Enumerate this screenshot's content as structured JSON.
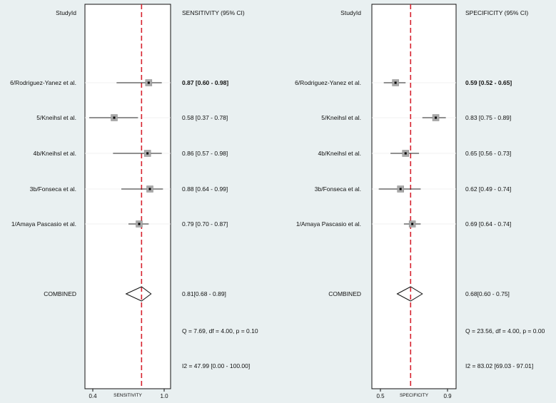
{
  "colors": {
    "background": "#e9f0f1",
    "panel": "#ffffff",
    "reference_line": "#d6222e",
    "marker_fill": "#a9a9a9",
    "text": "#111111"
  },
  "chart_data": [
    {
      "type": "forest",
      "study_header": "StudyId",
      "ci_header": "SENSITIVITY (95% CI)",
      "xlabel": "SENSITIVITY",
      "xlim": [
        0.35,
        1.02
      ],
      "xticks": [
        0.4,
        1.0
      ],
      "xtick_labels": [
        "0.4",
        "1.0"
      ],
      "reference_line": 0.81,
      "studies": [
        {
          "name": "6/Rodriguez-Yanez et al.",
          "estimate": 0.87,
          "lower": 0.6,
          "upper": 0.98,
          "label": "0.87 [0.60 - 0.98]",
          "bold": true
        },
        {
          "name": "5/Kneihsl et al.",
          "estimate": 0.58,
          "lower": 0.37,
          "upper": 0.78,
          "label": "0.58 [0.37 - 0.78]",
          "bold": false
        },
        {
          "name": "4b/Kneihsl et al.",
          "estimate": 0.86,
          "lower": 0.57,
          "upper": 0.98,
          "label": "0.86 [0.57 - 0.98]",
          "bold": false
        },
        {
          "name": "3b/Fonseca et al.",
          "estimate": 0.88,
          "lower": 0.64,
          "upper": 0.99,
          "label": "0.88 [0.64 - 0.99]",
          "bold": false
        },
        {
          "name": "1/Amaya Pascasio et al.",
          "estimate": 0.79,
          "lower": 0.7,
          "upper": 0.87,
          "label": "0.79 [0.70 - 0.87]",
          "bold": false
        }
      ],
      "combined": {
        "name": "COMBINED",
        "estimate": 0.81,
        "lower": 0.68,
        "upper": 0.89,
        "label": "0.81[0.68 - 0.89]"
      },
      "q_stat": "Q =  7.69, df = 4.00, p =  0.10",
      "i2_stat": "I2 = 47.99 [0.00 - 100.00]"
    },
    {
      "type": "forest",
      "study_header": "StudyId",
      "ci_header": "SPECIFICITY (95% CI)",
      "xlabel": "SPECIFICITY",
      "xlim": [
        0.46,
        0.94
      ],
      "xticks": [
        0.5,
        0.9
      ],
      "xtick_labels": [
        "0.5",
        "0.9"
      ],
      "reference_line": 0.68,
      "studies": [
        {
          "name": "6/Rodriguez-Yanez et al.",
          "estimate": 0.59,
          "lower": 0.52,
          "upper": 0.65,
          "label": "0.59 [0.52 - 0.65]",
          "bold": true
        },
        {
          "name": "5/Kneihsl et al.",
          "estimate": 0.83,
          "lower": 0.75,
          "upper": 0.89,
          "label": "0.83 [0.75 - 0.89]",
          "bold": false
        },
        {
          "name": "4b/Kneihsl et al.",
          "estimate": 0.65,
          "lower": 0.56,
          "upper": 0.73,
          "label": "0.65 [0.56 - 0.73]",
          "bold": false
        },
        {
          "name": "3b/Fonseca et al.",
          "estimate": 0.62,
          "lower": 0.49,
          "upper": 0.74,
          "label": "0.62 [0.49 - 0.74]",
          "bold": false
        },
        {
          "name": "1/Amaya Pascasio et al.",
          "estimate": 0.69,
          "lower": 0.64,
          "upper": 0.74,
          "label": "0.69 [0.64 - 0.74]",
          "bold": false
        }
      ],
      "combined": {
        "name": "COMBINED",
        "estimate": 0.68,
        "lower": 0.6,
        "upper": 0.75,
        "label": "0.68[0.60 - 0.75]"
      },
      "q_stat": "Q = 23.56, df = 4.00, p =  0.00",
      "i2_stat": "I2 = 83.02 [69.03 - 97.01]"
    }
  ]
}
